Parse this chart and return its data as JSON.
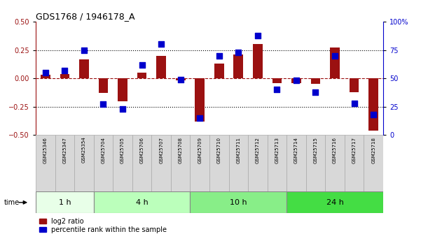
{
  "title": "GDS1768 / 1946178_A",
  "samples": [
    "GSM25346",
    "GSM25347",
    "GSM25354",
    "GSM25704",
    "GSM25705",
    "GSM25706",
    "GSM25707",
    "GSM25708",
    "GSM25709",
    "GSM25710",
    "GSM25711",
    "GSM25712",
    "GSM25713",
    "GSM25714",
    "GSM25715",
    "GSM25716",
    "GSM25717",
    "GSM25718"
  ],
  "log2_ratio": [
    0.03,
    0.04,
    0.17,
    -0.13,
    -0.2,
    0.05,
    0.2,
    -0.02,
    -0.38,
    0.13,
    0.21,
    0.3,
    -0.04,
    -0.04,
    -0.05,
    0.27,
    -0.12,
    -0.46
  ],
  "percentile": [
    55,
    57,
    75,
    27,
    23,
    62,
    80,
    49,
    15,
    70,
    73,
    88,
    40,
    48,
    38,
    70,
    28,
    18
  ],
  "groups": [
    {
      "label": "1 h",
      "start": 0,
      "end": 3,
      "color": "#e8ffe8"
    },
    {
      "label": "4 h",
      "start": 3,
      "end": 8,
      "color": "#bbffbb"
    },
    {
      "label": "10 h",
      "start": 8,
      "end": 13,
      "color": "#88ee88"
    },
    {
      "label": "24 h",
      "start": 13,
      "end": 18,
      "color": "#44dd44"
    }
  ],
  "bar_color": "#9b1111",
  "dot_color": "#0000cc",
  "ylim_left": [
    -0.5,
    0.5
  ],
  "ylim_right": [
    0,
    100
  ],
  "bg_color": "#ffffff"
}
